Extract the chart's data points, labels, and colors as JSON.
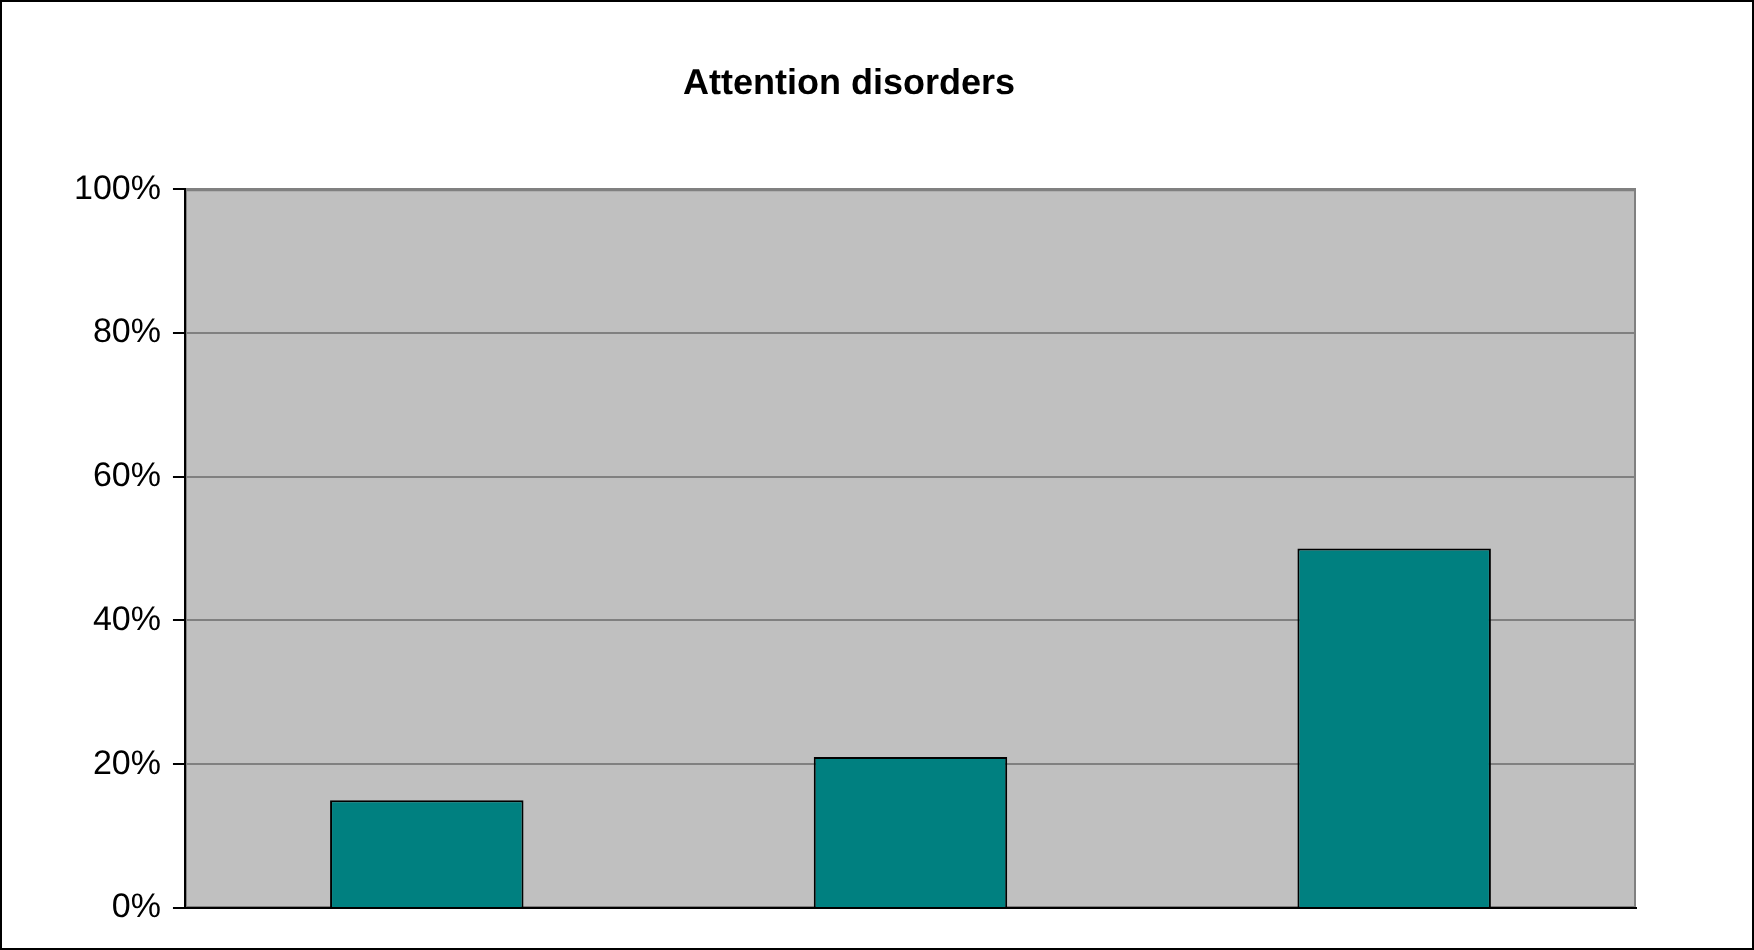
{
  "chart_data": {
    "type": "bar",
    "title": "Attention disorders",
    "categories": [
      null,
      null,
      null
    ],
    "series": [
      {
        "color": "#008080",
        "values": [
          15,
          21,
          50
        ]
      }
    ],
    "ylim": [
      0,
      100
    ],
    "yticks": [
      {
        "value": 0,
        "label": "0%"
      },
      {
        "value": 20,
        "label": "20%"
      },
      {
        "value": 40,
        "label": "40%"
      },
      {
        "value": 60,
        "label": "60%"
      },
      {
        "value": 80,
        "label": "80%"
      },
      {
        "value": 100,
        "label": "100%"
      }
    ],
    "grid": "y",
    "legend": false,
    "tick_labels": "y"
  }
}
